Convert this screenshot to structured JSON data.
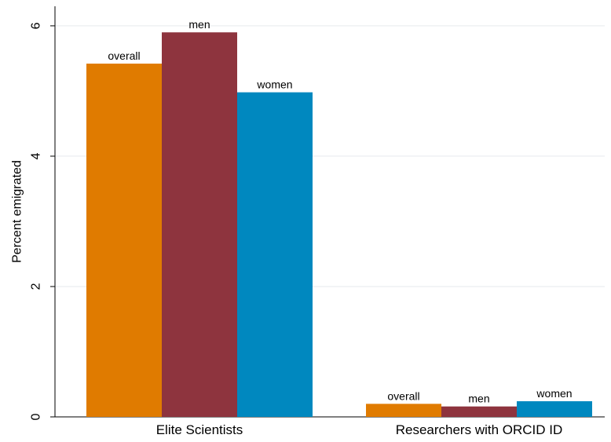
{
  "chart_data": {
    "type": "bar",
    "categories": [
      "Elite Scientists",
      "Researchers with ORCID ID"
    ],
    "series": [
      {
        "values": [
          5.42,
          0.2
        ],
        "color": "#e07b00",
        "bar_label": "overall"
      },
      {
        "values": [
          5.9,
          0.16
        ],
        "color": "#8e343e",
        "bar_label": "men"
      },
      {
        "values": [
          4.98,
          0.24
        ],
        "color": "#0088bf",
        "bar_label": "women"
      }
    ],
    "ylabel": "Percent emigrated",
    "ylim": [
      0,
      6.3
    ],
    "yticks": [
      0,
      2,
      4,
      6
    ],
    "grid": true,
    "legend": "none"
  }
}
